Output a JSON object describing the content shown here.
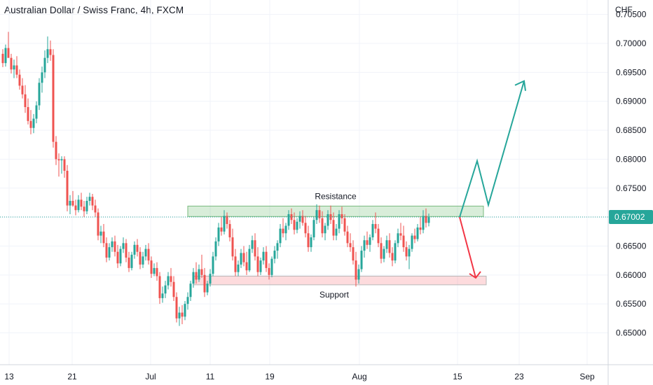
{
  "chart_data": {
    "type": "candlestick",
    "title": "Australian Dollar / Swiss Franc, 4h, FXCM",
    "currency": "CHF",
    "ylim": [
      0.6445,
      0.7075
    ],
    "y_ticks": [
      "0.65000",
      "0.65500",
      "0.66000",
      "0.66500",
      "0.67000",
      "0.67500",
      "0.68000",
      "0.68500",
      "0.69000",
      "0.69500",
      "0.70000",
      "0.70500"
    ],
    "x_ticks": [
      "13",
      "21",
      "Jul",
      "11",
      "19",
      "Aug",
      "15",
      "23",
      "Sep"
    ],
    "last_price": "0.67002",
    "colors": {
      "up": "#26a69a",
      "down": "#ef5350",
      "resistance": "#4caf50",
      "support": "#f23645",
      "projection_up": "#26a69a",
      "projection_down": "#f23645",
      "last_line": "#26a69a"
    },
    "grid": true,
    "resistance": {
      "label": "Resistance",
      "range": [
        0.6701,
        0.6719
      ]
    },
    "support": {
      "label": "Support",
      "range": [
        0.6583,
        0.6598
      ]
    },
    "candles": [
      [
        0.6982,
        0.699,
        0.6959,
        0.6966
      ],
      [
        0.6966,
        0.6998,
        0.696,
        0.6992
      ],
      [
        0.6992,
        0.702,
        0.698,
        0.6975
      ],
      [
        0.6975,
        0.6982,
        0.6948,
        0.6955
      ],
      [
        0.6955,
        0.6972,
        0.694,
        0.6962
      ],
      [
        0.6962,
        0.6978,
        0.694,
        0.6946
      ],
      [
        0.6946,
        0.6955,
        0.692,
        0.6927
      ],
      [
        0.6927,
        0.694,
        0.6905,
        0.6912
      ],
      [
        0.6912,
        0.6928,
        0.688,
        0.689
      ],
      [
        0.689,
        0.6905,
        0.686,
        0.6866
      ],
      [
        0.6866,
        0.6885,
        0.6843,
        0.6854
      ],
      [
        0.6854,
        0.6878,
        0.6845,
        0.687
      ],
      [
        0.687,
        0.69,
        0.6862,
        0.6893
      ],
      [
        0.6893,
        0.694,
        0.6885,
        0.6932
      ],
      [
        0.6932,
        0.696,
        0.6915,
        0.695
      ],
      [
        0.695,
        0.6988,
        0.694,
        0.6975
      ],
      [
        0.6975,
        0.7012,
        0.6966,
        0.699
      ],
      [
        0.699,
        0.7005,
        0.697,
        0.698
      ],
      [
        0.698,
        0.699,
        0.682,
        0.683
      ],
      [
        0.683,
        0.684,
        0.679,
        0.68
      ],
      [
        0.68,
        0.681,
        0.677,
        0.6798
      ],
      [
        0.6798,
        0.6805,
        0.6775,
        0.68
      ],
      [
        0.68,
        0.6805,
        0.6768,
        0.678
      ],
      [
        0.678,
        0.679,
        0.671,
        0.672
      ],
      [
        0.672,
        0.6738,
        0.6705,
        0.6728
      ],
      [
        0.6728,
        0.6745,
        0.6718,
        0.672
      ],
      [
        0.672,
        0.673,
        0.6703,
        0.6712
      ],
      [
        0.6712,
        0.6738,
        0.6708,
        0.673
      ],
      [
        0.673,
        0.6742,
        0.6712,
        0.6718
      ],
      [
        0.6718,
        0.6728,
        0.67,
        0.671
      ],
      [
        0.671,
        0.6735,
        0.6705,
        0.6728
      ],
      [
        0.6728,
        0.6742,
        0.672,
        0.6735
      ],
      [
        0.6735,
        0.674,
        0.6712,
        0.672
      ],
      [
        0.672,
        0.673,
        0.67,
        0.6708
      ],
      [
        0.6708,
        0.6715,
        0.666,
        0.6668
      ],
      [
        0.6668,
        0.6685,
        0.6655,
        0.6675
      ],
      [
        0.6675,
        0.6688,
        0.6648,
        0.6655
      ],
      [
        0.6655,
        0.6665,
        0.6622,
        0.663
      ],
      [
        0.663,
        0.6655,
        0.6625,
        0.6648
      ],
      [
        0.6648,
        0.6665,
        0.664,
        0.6658
      ],
      [
        0.6658,
        0.6668,
        0.6632,
        0.664
      ],
      [
        0.664,
        0.6652,
        0.6612,
        0.662
      ],
      [
        0.662,
        0.665,
        0.6615,
        0.6645
      ],
      [
        0.6645,
        0.6665,
        0.6638,
        0.6655
      ],
      [
        0.6655,
        0.6662,
        0.6622,
        0.663
      ],
      [
        0.663,
        0.664,
        0.6605,
        0.6612
      ],
      [
        0.6612,
        0.664,
        0.6608,
        0.6635
      ],
      [
        0.6635,
        0.6658,
        0.6628,
        0.6652
      ],
      [
        0.6652,
        0.6662,
        0.6632,
        0.664
      ],
      [
        0.664,
        0.6648,
        0.661,
        0.6618
      ],
      [
        0.6618,
        0.664,
        0.6612,
        0.6632
      ],
      [
        0.6632,
        0.6652,
        0.6625,
        0.6645
      ],
      [
        0.6645,
        0.6655,
        0.6618,
        0.6625
      ],
      [
        0.6625,
        0.6632,
        0.6595,
        0.6602
      ],
      [
        0.6602,
        0.662,
        0.6598,
        0.6612
      ],
      [
        0.6612,
        0.6622,
        0.659,
        0.6598
      ],
      [
        0.6598,
        0.6605,
        0.655,
        0.656
      ],
      [
        0.656,
        0.658,
        0.6552,
        0.6568
      ],
      [
        0.6568,
        0.659,
        0.656,
        0.6582
      ],
      [
        0.6582,
        0.6605,
        0.6575,
        0.6598
      ],
      [
        0.6598,
        0.6612,
        0.658,
        0.6588
      ],
      [
        0.6588,
        0.6598,
        0.6555,
        0.6562
      ],
      [
        0.6562,
        0.657,
        0.6518,
        0.6525
      ],
      [
        0.6525,
        0.6545,
        0.6512,
        0.6535
      ],
      [
        0.6535,
        0.6548,
        0.6515,
        0.6528
      ],
      [
        0.6528,
        0.6555,
        0.6522,
        0.655
      ],
      [
        0.655,
        0.657,
        0.654,
        0.6562
      ],
      [
        0.6562,
        0.659,
        0.6555,
        0.6585
      ],
      [
        0.6585,
        0.6612,
        0.6578,
        0.6605
      ],
      [
        0.6605,
        0.6622,
        0.6585,
        0.6592
      ],
      [
        0.6592,
        0.6618,
        0.6588,
        0.661
      ],
      [
        0.661,
        0.6635,
        0.6595,
        0.66
      ],
      [
        0.66,
        0.6612,
        0.6562,
        0.657
      ],
      [
        0.657,
        0.659,
        0.6565,
        0.6585
      ],
      [
        0.6585,
        0.661,
        0.658,
        0.6602
      ],
      [
        0.6602,
        0.664,
        0.6598,
        0.6632
      ],
      [
        0.6632,
        0.6665,
        0.6625,
        0.6658
      ],
      [
        0.6658,
        0.669,
        0.665,
        0.6682
      ],
      [
        0.6682,
        0.67,
        0.6668,
        0.6675
      ],
      [
        0.6675,
        0.6712,
        0.667,
        0.6702
      ],
      [
        0.6702,
        0.6708,
        0.668,
        0.6688
      ],
      [
        0.6688,
        0.6695,
        0.6658,
        0.6665
      ],
      [
        0.6665,
        0.668,
        0.6625,
        0.6632
      ],
      [
        0.6632,
        0.6645,
        0.6598,
        0.6605
      ],
      [
        0.6605,
        0.6625,
        0.6598,
        0.6618
      ],
      [
        0.6618,
        0.6645,
        0.6612,
        0.6638
      ],
      [
        0.6638,
        0.665,
        0.6615,
        0.6622
      ],
      [
        0.6622,
        0.664,
        0.66,
        0.6608
      ],
      [
        0.6608,
        0.6652,
        0.6605,
        0.6645
      ],
      [
        0.6645,
        0.6668,
        0.6638,
        0.666
      ],
      [
        0.666,
        0.6672,
        0.6625,
        0.6632
      ],
      [
        0.6632,
        0.6648,
        0.6598,
        0.6605
      ],
      [
        0.6605,
        0.663,
        0.66,
        0.6625
      ],
      [
        0.6625,
        0.6648,
        0.6618,
        0.664
      ],
      [
        0.664,
        0.665,
        0.6605,
        0.6612
      ],
      [
        0.6612,
        0.662,
        0.6592,
        0.66
      ],
      [
        0.66,
        0.6632,
        0.6596,
        0.6628
      ],
      [
        0.6628,
        0.665,
        0.662,
        0.6642
      ],
      [
        0.6642,
        0.666,
        0.6628,
        0.6655
      ],
      [
        0.6655,
        0.6688,
        0.6648,
        0.668
      ],
      [
        0.668,
        0.6698,
        0.6665,
        0.6672
      ],
      [
        0.6672,
        0.669,
        0.666,
        0.6685
      ],
      [
        0.6685,
        0.6712,
        0.6678,
        0.6705
      ],
      [
        0.6705,
        0.6715,
        0.6688,
        0.6695
      ],
      [
        0.6695,
        0.6708,
        0.667,
        0.6678
      ],
      [
        0.6678,
        0.6698,
        0.6672,
        0.6692
      ],
      [
        0.6692,
        0.671,
        0.668,
        0.6702
      ],
      [
        0.6702,
        0.6712,
        0.6685,
        0.669
      ],
      [
        0.669,
        0.6702,
        0.6665,
        0.6672
      ],
      [
        0.6672,
        0.6685,
        0.664,
        0.6648
      ],
      [
        0.6648,
        0.667,
        0.664,
        0.6665
      ],
      [
        0.6665,
        0.67,
        0.666,
        0.6695
      ],
      [
        0.6695,
        0.6722,
        0.6688,
        0.6712
      ],
      [
        0.6712,
        0.672,
        0.669,
        0.6698
      ],
      [
        0.6698,
        0.671,
        0.6665,
        0.6672
      ],
      [
        0.6672,
        0.669,
        0.666,
        0.6685
      ],
      [
        0.6685,
        0.6712,
        0.6678,
        0.6705
      ],
      [
        0.6705,
        0.672,
        0.6688,
        0.6695
      ],
      [
        0.6695,
        0.6708,
        0.666,
        0.6668
      ],
      [
        0.6668,
        0.6688,
        0.666,
        0.668
      ],
      [
        0.668,
        0.6712,
        0.6672,
        0.6705
      ],
      [
        0.6705,
        0.6718,
        0.6688,
        0.6698
      ],
      [
        0.6698,
        0.6705,
        0.6668,
        0.6675
      ],
      [
        0.6675,
        0.6685,
        0.6648,
        0.6655
      ],
      [
        0.6655,
        0.6672,
        0.664,
        0.6648
      ],
      [
        0.6648,
        0.666,
        0.6618,
        0.6625
      ],
      [
        0.6625,
        0.664,
        0.658,
        0.6592
      ],
      [
        0.6592,
        0.6618,
        0.6585,
        0.661
      ],
      [
        0.661,
        0.665,
        0.6605,
        0.6642
      ],
      [
        0.6642,
        0.6668,
        0.663,
        0.666
      ],
      [
        0.666,
        0.6675,
        0.6645,
        0.6652
      ],
      [
        0.6652,
        0.667,
        0.664,
        0.6665
      ],
      [
        0.6665,
        0.6695,
        0.666,
        0.6688
      ],
      [
        0.6688,
        0.6708,
        0.6672,
        0.668
      ],
      [
        0.668,
        0.6688,
        0.6648,
        0.6655
      ],
      [
        0.6655,
        0.6665,
        0.662,
        0.6628
      ],
      [
        0.6628,
        0.665,
        0.6622,
        0.6645
      ],
      [
        0.6645,
        0.6668,
        0.6638,
        0.666
      ],
      [
        0.666,
        0.6672,
        0.663,
        0.6638
      ],
      [
        0.6638,
        0.6648,
        0.6615,
        0.6625
      ],
      [
        0.6625,
        0.666,
        0.662,
        0.6655
      ],
      [
        0.6655,
        0.668,
        0.6648,
        0.6672
      ],
      [
        0.6672,
        0.669,
        0.666,
        0.6668
      ],
      [
        0.6668,
        0.6685,
        0.664,
        0.6648
      ],
      [
        0.6648,
        0.6658,
        0.6625,
        0.6632
      ],
      [
        0.6632,
        0.6652,
        0.661,
        0.6645
      ],
      [
        0.6645,
        0.6672,
        0.664,
        0.6668
      ],
      [
        0.6668,
        0.668,
        0.6655,
        0.6662
      ],
      [
        0.6662,
        0.6688,
        0.6658,
        0.6682
      ],
      [
        0.6682,
        0.67,
        0.667,
        0.6678
      ],
      [
        0.6678,
        0.6712,
        0.6672,
        0.6702
      ],
      [
        0.6702,
        0.6715,
        0.6682,
        0.669
      ],
      [
        0.669,
        0.6706,
        0.6684,
        0.67
      ]
    ]
  }
}
